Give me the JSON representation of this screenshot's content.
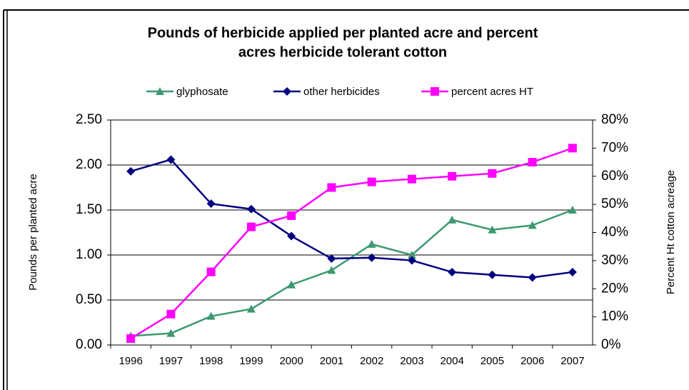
{
  "chart_data": {
    "type": "line",
    "title": [
      "Pounds of herbicide applied per planted acre and percent",
      "acres herbicide tolerant cotton"
    ],
    "ylabel": "Pounds per planted acre",
    "y2label": "Percent Ht cotton acreage",
    "categories": [
      "1996",
      "1997",
      "1998",
      "1999",
      "2000",
      "2001",
      "2002",
      "2003",
      "2004",
      "2005",
      "2006",
      "2007"
    ],
    "series": [
      {
        "name": "glyphosate",
        "color": "#3d9970",
        "marker": "triangle",
        "values": [
          0.1,
          0.13,
          0.32,
          0.4,
          0.67,
          0.83,
          1.12,
          1.0,
          1.39,
          1.28,
          1.33,
          1.5
        ]
      },
      {
        "name": "other herbicides",
        "color": "#000080",
        "marker": "diamond",
        "values": [
          1.93,
          2.06,
          1.57,
          1.51,
          1.21,
          0.96,
          0.97,
          0.94,
          0.81,
          0.78,
          0.75,
          0.81
        ]
      },
      {
        "name": "percent acres HT",
        "color": "#ff00ff",
        "marker": "square",
        "axis": "y2",
        "values": [
          2.3,
          11,
          26,
          42,
          46,
          56,
          58,
          59,
          60,
          61,
          65,
          70
        ]
      }
    ],
    "ylim": [
      0,
      2.5
    ],
    "yticks": [
      {
        "value": 0,
        "label": "0.00"
      },
      {
        "value": 0.5,
        "label": "0.50"
      },
      {
        "value": 1,
        "label": "1.00"
      },
      {
        "value": 1.5,
        "label": "1.50"
      },
      {
        "value": 2,
        "label": "2.00"
      },
      {
        "value": 2.5,
        "label": "2.50"
      }
    ],
    "y2lim": [
      0,
      80
    ],
    "y2ticks": [
      {
        "value": 0,
        "label": "0%"
      },
      {
        "value": 10,
        "label": "10%"
      },
      {
        "value": 20,
        "label": "20%"
      },
      {
        "value": 30,
        "label": "30%"
      },
      {
        "value": 40,
        "label": "40%"
      },
      {
        "value": 50,
        "label": "50%"
      },
      {
        "value": 60,
        "label": "60%"
      },
      {
        "value": 70,
        "label": "70%"
      },
      {
        "value": 80,
        "label": "80%"
      }
    ],
    "grid": true
  }
}
